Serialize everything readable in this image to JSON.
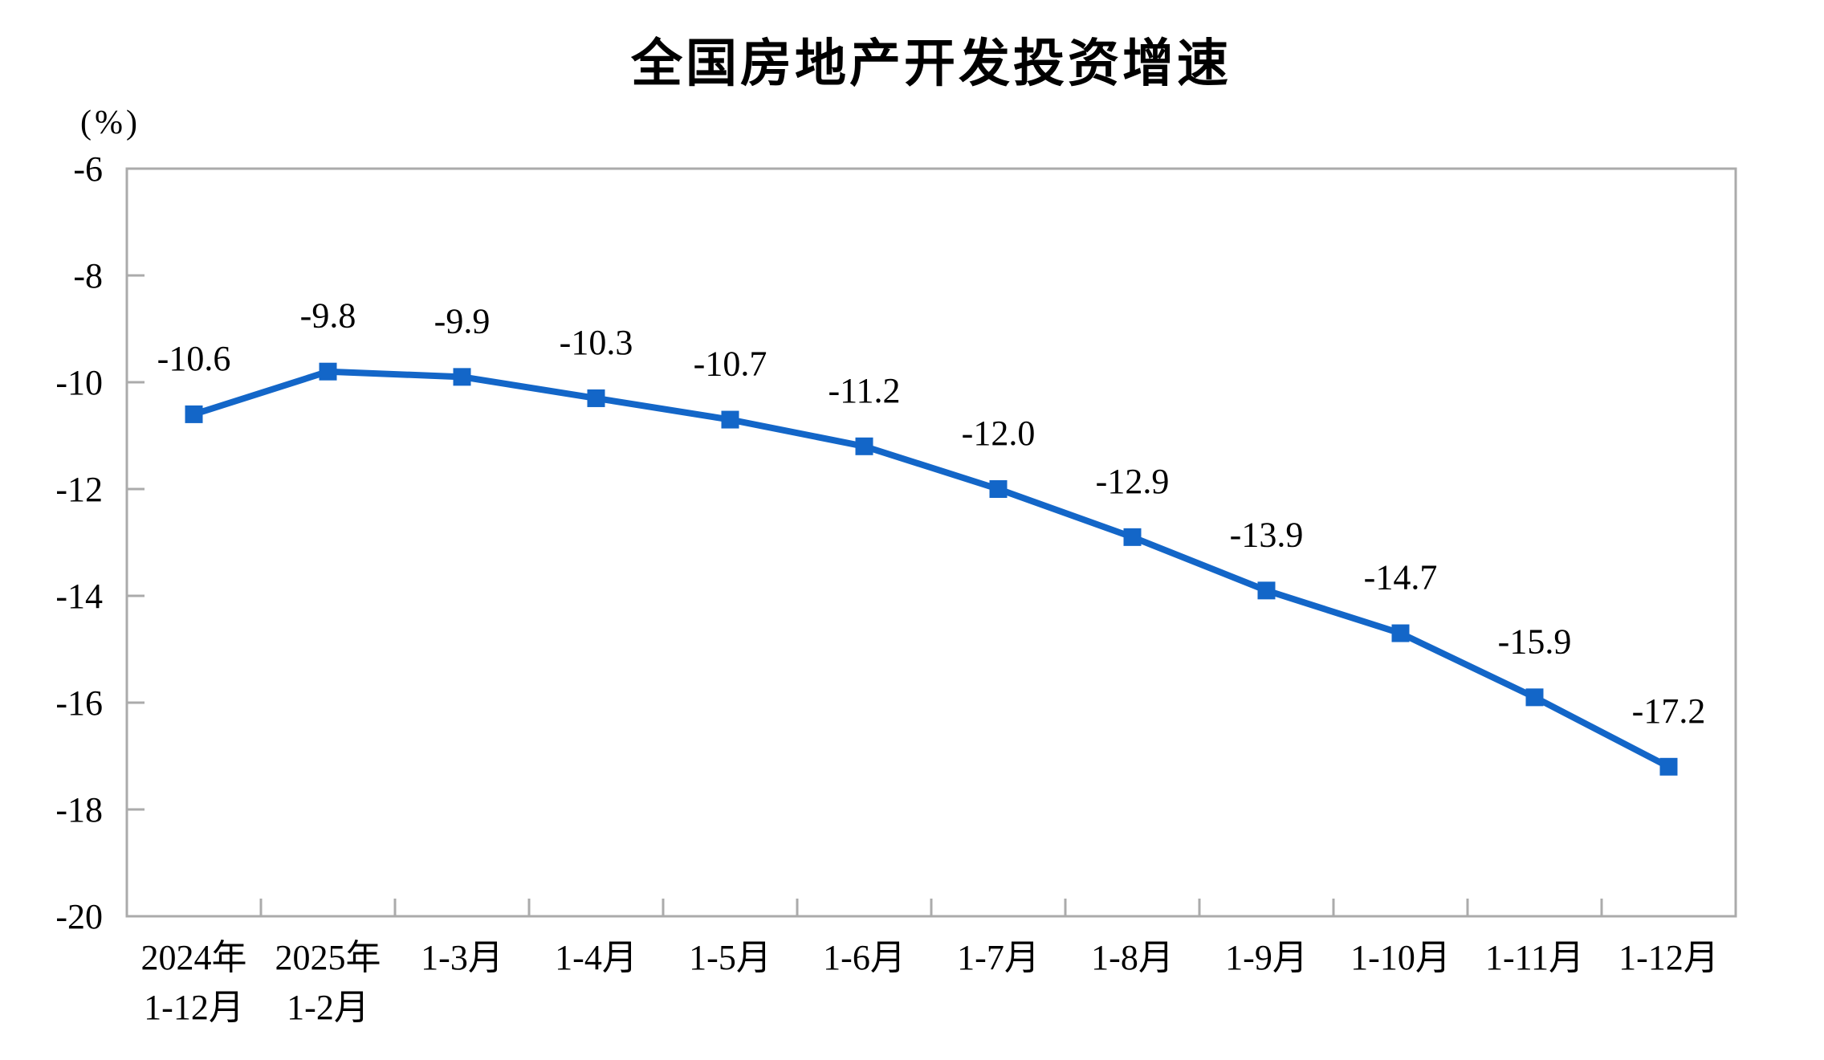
{
  "chart_data": {
    "type": "line",
    "title": "全国房地产开发投资增速",
    "unit_label": "(%)",
    "categories": [
      [
        "2024年",
        "1-12月"
      ],
      [
        "2025年",
        "1-2月"
      ],
      [
        "1-3月"
      ],
      [
        "1-4月"
      ],
      [
        "1-5月"
      ],
      [
        "1-6月"
      ],
      [
        "1-7月"
      ],
      [
        "1-8月"
      ],
      [
        "1-9月"
      ],
      [
        "1-10月"
      ],
      [
        "1-11月"
      ],
      [
        "1-12月"
      ]
    ],
    "values": [
      -10.6,
      -9.8,
      -9.9,
      -10.3,
      -10.7,
      -11.2,
      -12.0,
      -12.9,
      -13.9,
      -14.7,
      -15.9,
      -17.2
    ],
    "data_labels": [
      "-10.6",
      "-9.8",
      "-9.9",
      "-10.3",
      "-10.7",
      "-11.2",
      "-12.0",
      "-12.9",
      "-13.9",
      "-14.7",
      "-15.9",
      "-17.2"
    ],
    "ylim": [
      -20,
      -6
    ],
    "ytick_step": 2,
    "ytick_labels": [
      "-6",
      "-8",
      "-10",
      "-12",
      "-14",
      "-16",
      "-18",
      "-20"
    ],
    "grid": false,
    "legend": "none",
    "marker": "square",
    "colors": {
      "series": "#1366C8",
      "axis": "#ABABAB",
      "text": "#000000",
      "title": "#000000",
      "background": "#FFFFFF"
    }
  }
}
